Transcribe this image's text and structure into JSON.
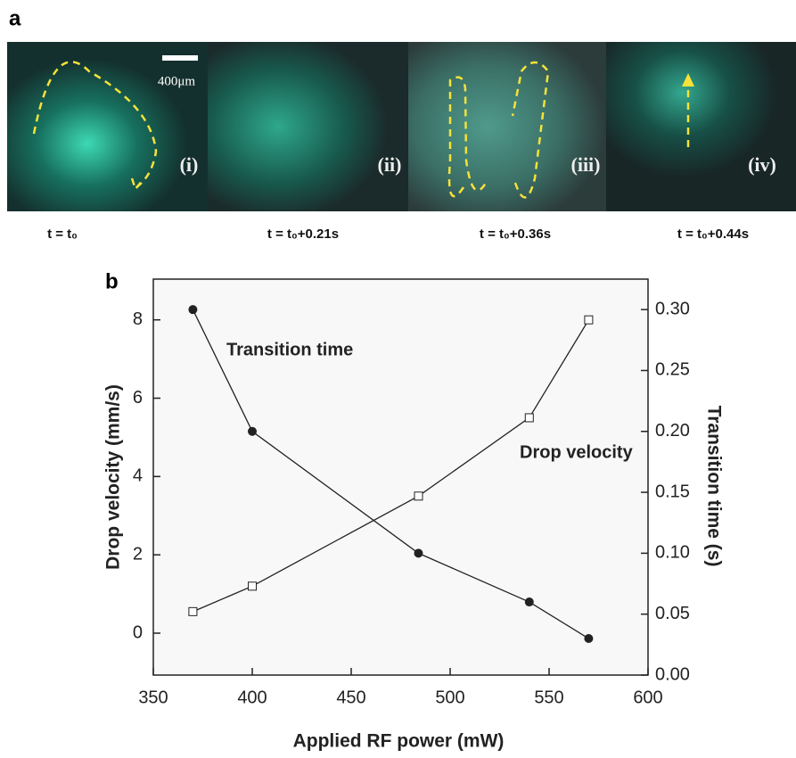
{
  "panel_a": {
    "label": "a",
    "scale_bar": "400μm",
    "frames": [
      {
        "tag": "(i)",
        "time": "t = t₀"
      },
      {
        "tag": "(ii)",
        "time": "t = t₀+0.21s"
      },
      {
        "tag": "(iii)",
        "time": "t = t₀+0.36s"
      },
      {
        "tag": "(iv)",
        "time": "t = t₀+0.44s"
      }
    ]
  },
  "chart_data": {
    "type": "line",
    "label": "b",
    "x_label": "Applied RF power (mW)",
    "y_label": "Drop velocity (mm/s)",
    "y2_label": "Transition time (s)",
    "x": [
      370,
      400,
      484,
      540,
      570
    ],
    "series": [
      {
        "name": "Drop velocity",
        "color": "#222222",
        "marker": "square",
        "values": [
          0.55,
          1.2,
          3.5,
          5.5,
          8.0
        ]
      },
      {
        "name": "Transition time",
        "color": "#222222",
        "marker": "circle",
        "axis": "y2",
        "values": [
          0.3,
          0.2,
          0.1,
          0.06,
          0.03
        ]
      }
    ],
    "xlim": [
      350,
      600
    ],
    "xticks": [
      350,
      400,
      450,
      500,
      550,
      600
    ],
    "ylim": [
      -1.07,
      9.04
    ],
    "yticks": [
      0,
      2,
      4,
      6,
      8
    ],
    "y2lim": [
      0,
      0.325
    ],
    "y2ticks": [
      {
        "value": 0,
        "label": "0.00"
      },
      {
        "value": 0.05,
        "label": "0.05"
      },
      {
        "value": 0.1,
        "label": "0.10"
      },
      {
        "value": 0.15,
        "label": "0.15"
      },
      {
        "value": 0.2,
        "label": "0.20"
      },
      {
        "value": 0.25,
        "label": "0.25"
      },
      {
        "value": 0.3,
        "label": "0.30"
      }
    ]
  }
}
